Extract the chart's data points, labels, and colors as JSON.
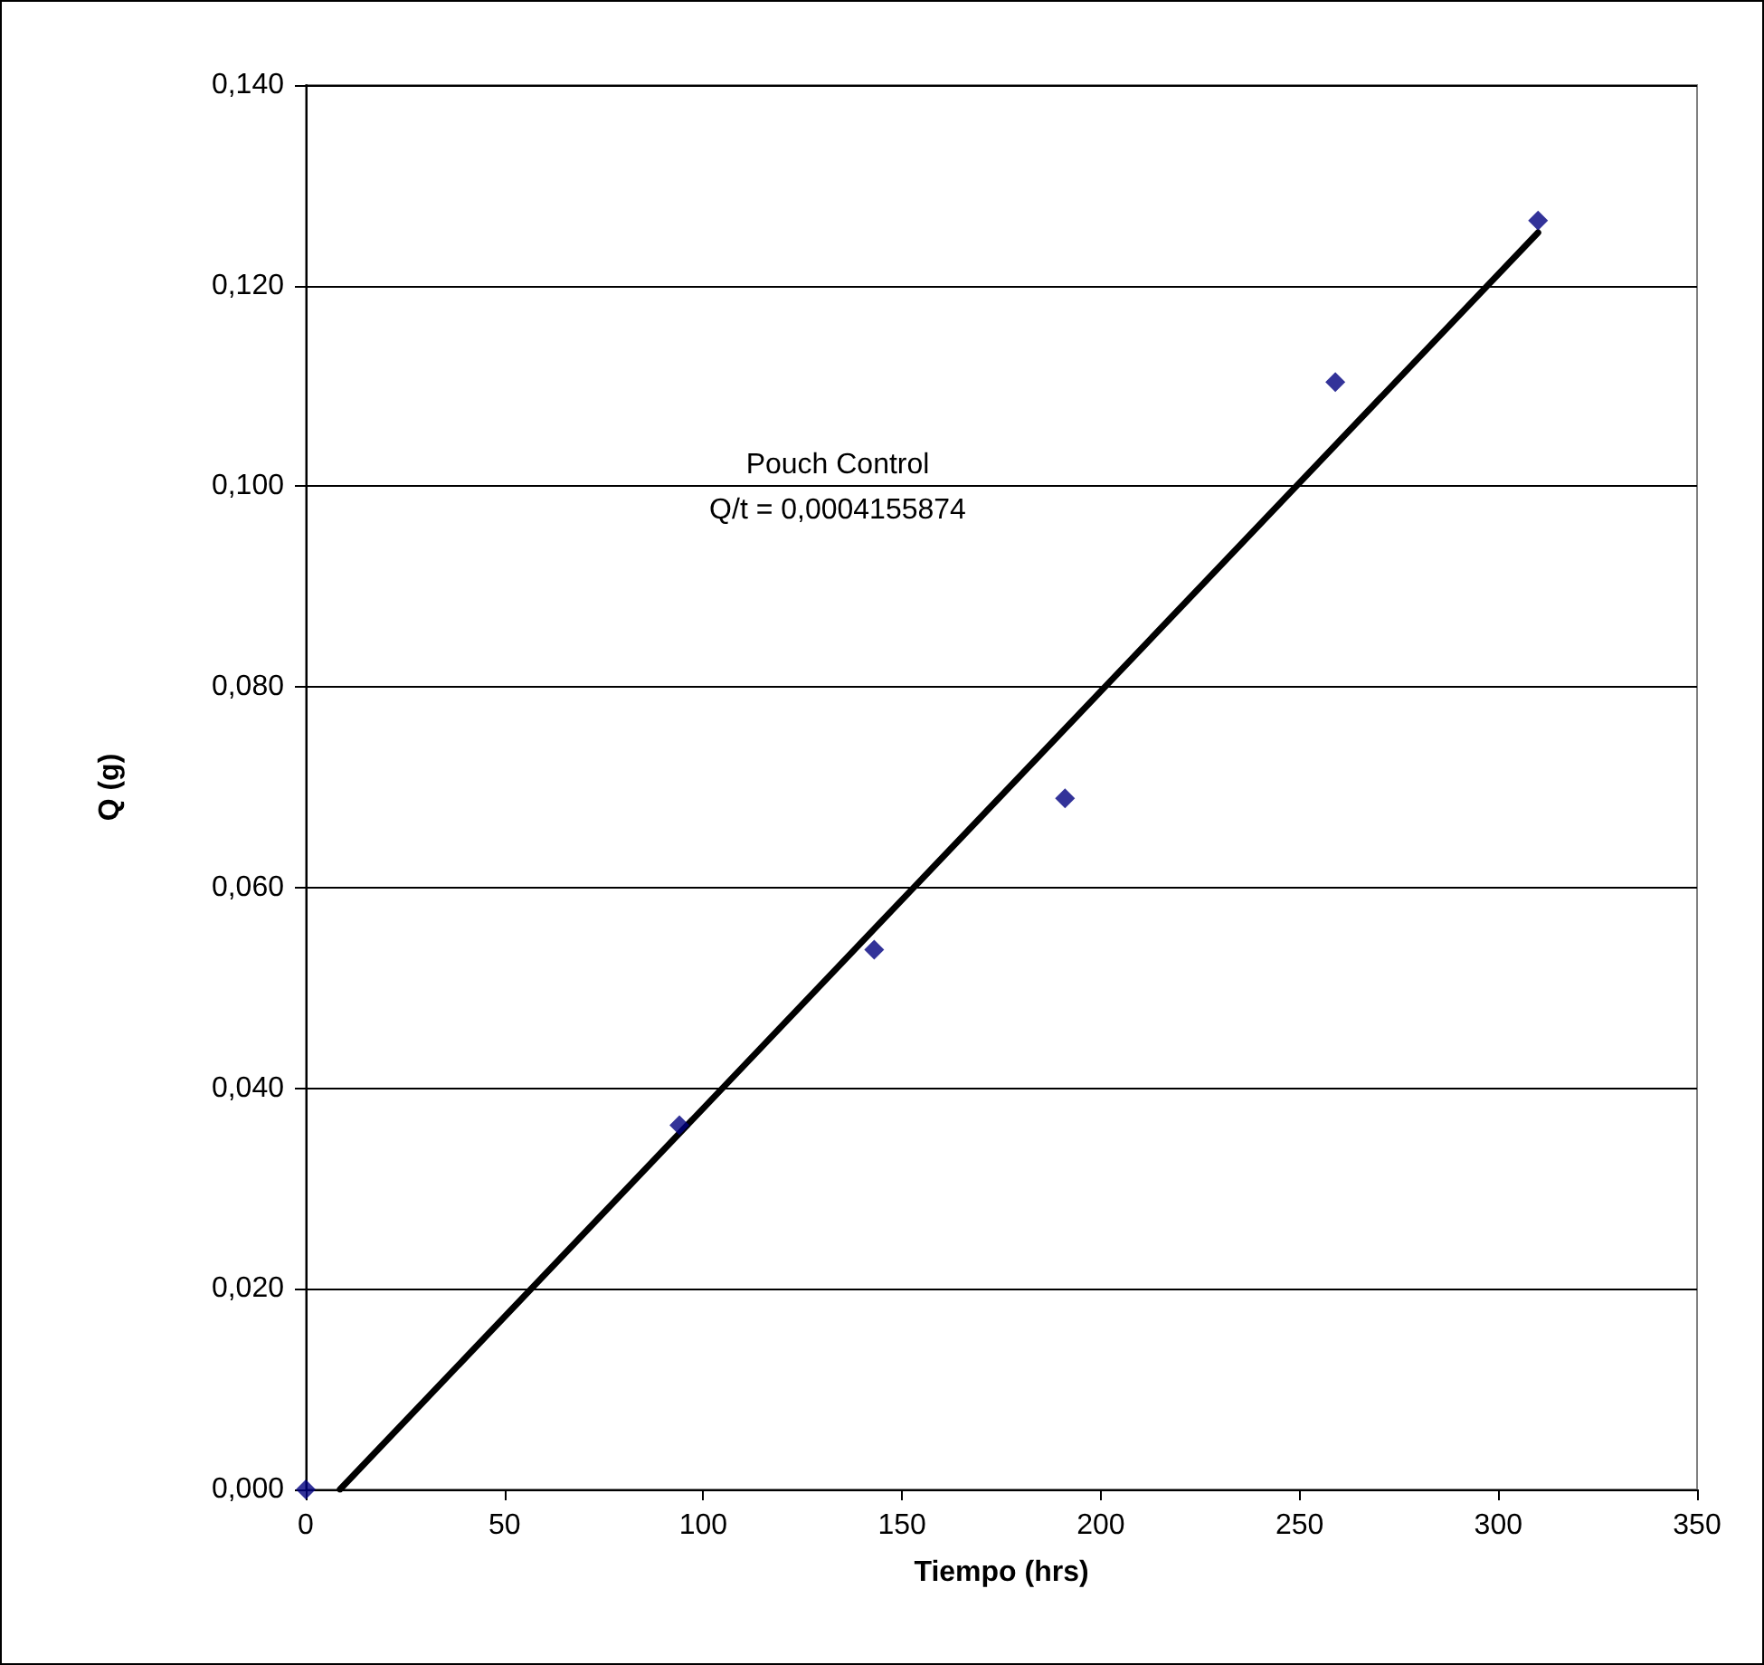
{
  "chart_data": {
    "type": "scatter",
    "xlabel": "Tiempo (hrs)",
    "ylabel": "Q (g)",
    "annotations": [
      "Pouch Control",
      "Q/t = 0,0004155874"
    ],
    "series": [
      {
        "color": "#000080",
        "marker": "diamond",
        "x": [
          0,
          94,
          143,
          191,
          259,
          310
        ],
        "values": [
          0,
          0.0363,
          0.0538,
          0.0689,
          0.1104,
          0.1265
        ]
      },
      {
        "type": "line",
        "color": "#000000",
        "marker": "none",
        "line_style": "solid",
        "x": [
          8.6,
          310
        ],
        "values": [
          0,
          0.1253
        ]
      }
    ],
    "xlim": [
      0,
      350
    ],
    "xticks": [
      0,
      50,
      100,
      150,
      200,
      250,
      300,
      350
    ],
    "ylim": [
      0,
      0.14
    ],
    "yticks": [
      {
        "value": 0,
        "label": "0,000"
      },
      {
        "value": 0.02,
        "label": "0,020"
      },
      {
        "value": 0.04,
        "label": "0,040"
      },
      {
        "value": 0.06,
        "label": "0,060"
      },
      {
        "value": 0.08,
        "label": "0,080"
      },
      {
        "value": 0.1,
        "label": "0,100"
      },
      {
        "value": 0.12,
        "label": "0,120"
      },
      {
        "value": 0.14,
        "label": "0,140"
      }
    ],
    "grid": "y"
  }
}
